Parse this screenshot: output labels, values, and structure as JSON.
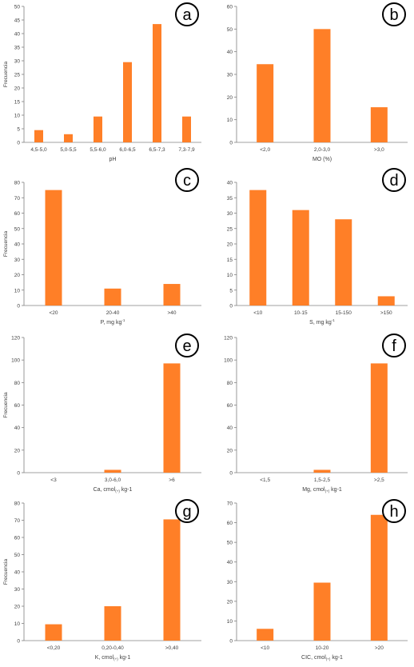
{
  "colors": {
    "bar": "#FF7F27",
    "axis": "#808080",
    "text": "#404040",
    "badge_border": "#000000"
  },
  "chart_data": [
    {
      "id": "a",
      "type": "bar",
      "panel_letter": "a",
      "categories": [
        "4,5-5,0",
        "5,0-5,5",
        "5,5-6,0",
        "6,0-6,5",
        "6,5-7,3",
        "7,3-7,9"
      ],
      "values": [
        4.5,
        3,
        9.5,
        29.5,
        43.5,
        9.5
      ],
      "ylim": [
        0,
        50
      ],
      "yticks": [
        0,
        5,
        10,
        15,
        20,
        25,
        30,
        35,
        40,
        45,
        50
      ],
      "ylabel": "Frecuencia",
      "xlabel": "pH",
      "xlabel_sub": "",
      "xlabel_tail": ""
    },
    {
      "id": "b",
      "type": "bar",
      "panel_letter": "b",
      "categories": [
        "<2,0",
        "2,0-3,0",
        ">3,0"
      ],
      "values": [
        34.5,
        50,
        15.5
      ],
      "ylim": [
        0,
        60
      ],
      "yticks": [
        0,
        10,
        20,
        30,
        40,
        50,
        60
      ],
      "ylabel": "",
      "xlabel": "MO (%)",
      "xlabel_sub": "",
      "xlabel_tail": ""
    },
    {
      "id": "c",
      "type": "bar",
      "panel_letter": "c",
      "categories": [
        "<20",
        "20-40",
        ">40"
      ],
      "values": [
        75,
        11,
        14
      ],
      "ylim": [
        0,
        80
      ],
      "yticks": [
        0,
        10,
        20,
        30,
        40,
        50,
        60,
        70,
        80
      ],
      "ylabel": "Frecuencia",
      "xlabel": "P, mg kg",
      "xlabel_sub": "",
      "xlabel_tail": "-1"
    },
    {
      "id": "d",
      "type": "bar",
      "panel_letter": "d",
      "categories": [
        "<10",
        "10-15",
        "15-150",
        ">150"
      ],
      "values": [
        37.5,
        31,
        28,
        3
      ],
      "ylim": [
        0,
        40
      ],
      "yticks": [
        0,
        5,
        10,
        15,
        20,
        25,
        30,
        35,
        40
      ],
      "ylabel": "",
      "xlabel": "S, mg kg",
      "xlabel_sub": "",
      "xlabel_tail": "-1"
    },
    {
      "id": "e",
      "type": "bar",
      "panel_letter": "e",
      "categories": [
        "<3",
        "3,0-6,0",
        ">6"
      ],
      "values": [
        0,
        2.5,
        97
      ],
      "ylim": [
        0,
        120
      ],
      "yticks": [
        0,
        20,
        40,
        60,
        80,
        100,
        120
      ],
      "ylabel": "Frecuencia",
      "xlabel": "Ca, cmol",
      "xlabel_sub": "(+)",
      "xlabel_tail": " kg-1"
    },
    {
      "id": "f",
      "type": "bar",
      "panel_letter": "f",
      "categories": [
        "<1,5",
        "1,5-2,5",
        ">2,5"
      ],
      "values": [
        0,
        2.5,
        97
      ],
      "ylim": [
        0,
        120
      ],
      "yticks": [
        0,
        20,
        40,
        60,
        80,
        100,
        120
      ],
      "ylabel": "",
      "xlabel": "Mg, cmol",
      "xlabel_sub": "(+)",
      "xlabel_tail": " kg-1"
    },
    {
      "id": "g",
      "type": "bar",
      "panel_letter": "g",
      "categories": [
        "<0,20",
        "0,20-0,40",
        ">0,40"
      ],
      "values": [
        9.5,
        20,
        70.5
      ],
      "ylim": [
        0,
        80
      ],
      "yticks": [
        0,
        10,
        20,
        30,
        40,
        50,
        60,
        70,
        80
      ],
      "ylabel": "Frecuencia",
      "xlabel": "K, cmol",
      "xlabel_sub": "(+)",
      "xlabel_tail": " kg-1"
    },
    {
      "id": "h",
      "type": "bar",
      "panel_letter": "h",
      "categories": [
        "<10",
        "10-20",
        ">20"
      ],
      "values": [
        6,
        29.5,
        64
      ],
      "ylim": [
        0,
        70
      ],
      "yticks": [
        0,
        10,
        20,
        30,
        40,
        50,
        60,
        70
      ],
      "ylabel": "",
      "xlabel": "CIC, cmol",
      "xlabel_sub": "(+)",
      "xlabel_tail": " kg-1"
    }
  ]
}
